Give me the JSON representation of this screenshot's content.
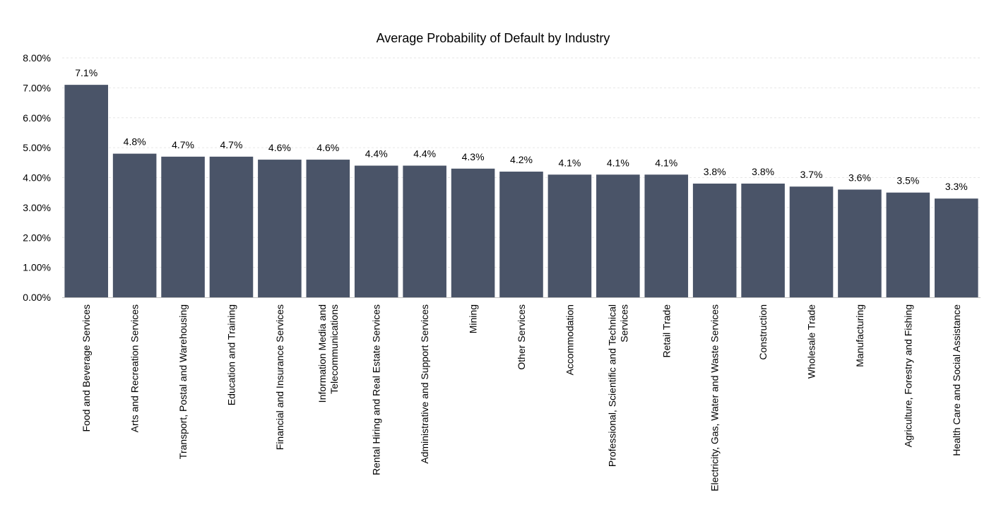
{
  "chart_data": {
    "type": "bar",
    "title": "Average Probability of Default by Industry",
    "xlabel": "",
    "ylabel": "",
    "ylim": [
      0,
      8
    ],
    "y_ticks": [
      0,
      1,
      2,
      3,
      4,
      5,
      6,
      7,
      8
    ],
    "y_tick_labels": [
      "0.00%",
      "1.00%",
      "2.00%",
      "3.00%",
      "4.00%",
      "5.00%",
      "6.00%",
      "7.00%",
      "8.00%"
    ],
    "grid": true,
    "legend": "none",
    "bar_color": "#4a5468",
    "categories": [
      "Food and Beverage Services",
      "Arts and Recreation Services",
      "Transport, Postal and Warehousing",
      "Education and Training",
      "Financial and Insurance Services",
      "Information Media and Telecommunications",
      "Rental Hiring and Real Estate Services",
      "Administrative and Support Services",
      "Mining",
      "Other Services",
      "Accommodation",
      "Professional, Scientific and Technical Services",
      "Retail Trade",
      "Electricity, Gas, Water and Waste Services",
      "Construction",
      "Wholesale Trade",
      "Manufacturing",
      "Agriculture, Forestry and Fishing",
      "Health Care and Social Assistance"
    ],
    "category_lines": [
      [
        "Food and Beverage Services"
      ],
      [
        "Arts and Recreation Services"
      ],
      [
        "Transport, Postal and Warehousing"
      ],
      [
        "Education and Training"
      ],
      [
        "Financial and Insurance Services"
      ],
      [
        "Information Media and",
        "Telecommunications"
      ],
      [
        "Rental Hiring and Real Estate Services"
      ],
      [
        "Administrative and Support Services"
      ],
      [
        "Mining"
      ],
      [
        "Other Services"
      ],
      [
        "Accommodation"
      ],
      [
        "Professional, Scientific and Technical",
        "Services"
      ],
      [
        "Retail Trade"
      ],
      [
        "Electricity, Gas, Water and Waste Services"
      ],
      [
        "Construction"
      ],
      [
        "Wholesale Trade"
      ],
      [
        "Manufacturing"
      ],
      [
        "Agriculture, Forestry and Fishing"
      ],
      [
        "Health Care and Social Assistance"
      ]
    ],
    "values": [
      7.1,
      4.8,
      4.7,
      4.7,
      4.6,
      4.6,
      4.4,
      4.4,
      4.3,
      4.2,
      4.1,
      4.1,
      4.1,
      3.8,
      3.8,
      3.7,
      3.6,
      3.5,
      3.3
    ],
    "data_labels": [
      "7.1%",
      "4.8%",
      "4.7%",
      "4.7%",
      "4.6%",
      "4.6%",
      "4.4%",
      "4.4%",
      "4.3%",
      "4.2%",
      "4.1%",
      "4.1%",
      "4.1%",
      "3.8%",
      "3.8%",
      "3.7%",
      "3.6%",
      "3.5%",
      "3.3%"
    ]
  }
}
